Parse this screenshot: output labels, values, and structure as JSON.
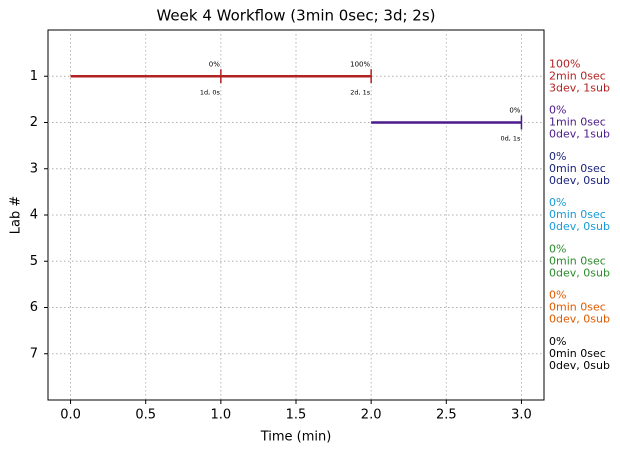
{
  "chart_data": {
    "type": "gantt",
    "title": "Week 4 Workflow (3min 0sec; 3d; 2s)",
    "x_label": "Time (min)",
    "y_label": "Lab #",
    "xlim": [
      -0.15,
      3.15
    ],
    "xticks": [
      {
        "value": 0,
        "label": "0.0"
      },
      0.5,
      {
        "value": 1,
        "label": "1.0"
      },
      1.5,
      {
        "value": 2,
        "label": "2.0"
      },
      2.5,
      {
        "value": 3,
        "label": "3.0"
      }
    ],
    "ylim": [
      0,
      8
    ],
    "invert_y": true,
    "yticks": [
      1,
      2,
      3,
      4,
      5,
      6,
      7
    ],
    "grid": true,
    "segments": [
      {
        "lab": 1,
        "start": 0,
        "end": 2,
        "color": "#b22222"
      },
      {
        "lab": 2,
        "start": 2,
        "end": 3,
        "color": "#4b1a8c"
      }
    ],
    "milestones": [
      {
        "lab": 1,
        "x": 1,
        "color": "#b22222",
        "top_label": "0%",
        "bottom_label": "1d, 0s"
      },
      {
        "lab": 1,
        "x": 2,
        "color": "#b22222",
        "top_label": "100%",
        "bottom_label": "2d, 1s"
      },
      {
        "lab": 2,
        "x": 3,
        "color": "#4b1a8c",
        "top_label": "0%",
        "bottom_label": "0d, 1s"
      }
    ],
    "lab_summaries": [
      {
        "lab": 1,
        "color": "#b22222",
        "lines": [
          "100%",
          "2min 0sec",
          "3dev, 1sub"
        ]
      },
      {
        "lab": 2,
        "color": "#4b1a8c",
        "lines": [
          "0%",
          "1min 0sec",
          "0dev, 1sub"
        ]
      },
      {
        "lab": 3,
        "color": "#1a237e",
        "lines": [
          "0%",
          "0min 0sec",
          "0dev, 0sub"
        ]
      },
      {
        "lab": 4,
        "color": "#1a9ad6",
        "lines": [
          "0%",
          "0min 0sec",
          "0dev, 0sub"
        ]
      },
      {
        "lab": 5,
        "color": "#2e8b2e",
        "lines": [
          "0%",
          "0min 0sec",
          "0dev, 0sub"
        ]
      },
      {
        "lab": 6,
        "color": "#e05a00",
        "lines": [
          "0%",
          "0min 0sec",
          "0dev, 0sub"
        ]
      },
      {
        "lab": 7,
        "color": "#000000",
        "lines": [
          "0%",
          "0min 0sec",
          "0dev, 0sub"
        ]
      }
    ]
  }
}
